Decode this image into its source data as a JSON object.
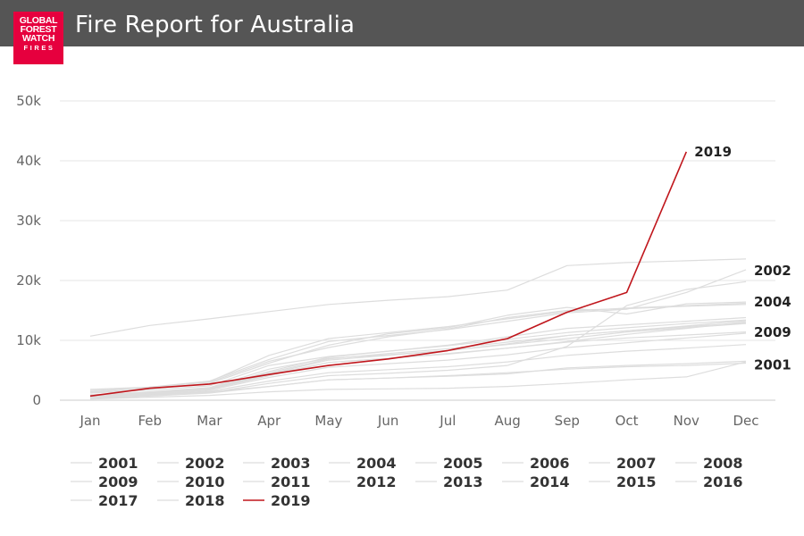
{
  "header": {
    "title": "Fire Report for Australia",
    "logo": {
      "line1": "GLOBAL",
      "line2": "FOREST",
      "line3": "WATCH",
      "line4": "FIRES",
      "color": "#e6003e"
    },
    "background": "#555555"
  },
  "chart_data": {
    "type": "line",
    "title": "",
    "xlabel": "",
    "ylabel": "",
    "categories": [
      "Jan",
      "Feb",
      "Mar",
      "Apr",
      "May",
      "Jun",
      "Jul",
      "Aug",
      "Sep",
      "Oct",
      "Nov",
      "Dec"
    ],
    "ylim": [
      0,
      50000
    ],
    "yticks": [
      0,
      10000,
      20000,
      30000,
      40000,
      50000
    ],
    "ytick_labels": [
      "0",
      "10k",
      "20k",
      "30k",
      "40k",
      "50k"
    ],
    "grid": true,
    "legend_position": "bottom",
    "highlight_color": "#c0161c",
    "muted_color": "#dddddd",
    "series": [
      {
        "name": "2001",
        "values": [
          300,
          900,
          1400,
          2300,
          3400,
          3700,
          4100,
          4600,
          5200,
          5600,
          5800,
          6200
        ],
        "end_label": "2001"
      },
      {
        "name": "2002",
        "values": [
          1800,
          2200,
          3200,
          6800,
          9800,
          10800,
          11800,
          13200,
          14600,
          15200,
          18000,
          21800
        ],
        "end_label": "2002"
      },
      {
        "name": "2003",
        "values": [
          10700,
          12500,
          13600,
          14800,
          16000,
          16700,
          17300,
          18400,
          22500,
          23000,
          23300,
          23600
        ]
      },
      {
        "name": "2004",
        "values": [
          1400,
          2200,
          3000,
          6500,
          8800,
          10600,
          11900,
          13800,
          15000,
          15300,
          15700,
          16000
        ],
        "end_label": "2004"
      },
      {
        "name": "2005",
        "values": [
          900,
          1400,
          2100,
          5200,
          7000,
          7600,
          8300,
          9300,
          10300,
          11400,
          12100,
          12800
        ]
      },
      {
        "name": "2006",
        "values": [
          1200,
          1700,
          2400,
          5800,
          7300,
          8200,
          9100,
          10200,
          11300,
          12100,
          12800,
          13400
        ]
      },
      {
        "name": "2007",
        "values": [
          600,
          1100,
          1800,
          4300,
          6300,
          7000,
          7800,
          8700,
          9800,
          11000,
          12000,
          13100
        ]
      },
      {
        "name": "2008",
        "values": [
          500,
          900,
          1500,
          3200,
          4600,
          5100,
          5600,
          6400,
          7500,
          8200,
          8700,
          9300
        ]
      },
      {
        "name": "2009",
        "values": [
          500,
          1000,
          1700,
          3800,
          5500,
          6100,
          6700,
          7600,
          8800,
          9600,
          10400,
          11200
        ],
        "end_label": "2009"
      },
      {
        "name": "2010",
        "values": [
          300,
          700,
          1200,
          2300,
          3400,
          3700,
          4000,
          4400,
          5400,
          5800,
          6100,
          6500
        ]
      },
      {
        "name": "2011",
        "values": [
          200,
          500,
          800,
          1400,
          1800,
          1900,
          2000,
          2300,
          2800,
          3400,
          3900,
          6400
        ]
      },
      {
        "name": "2012",
        "values": [
          1600,
          2100,
          3100,
          7500,
          10300,
          11300,
          12300,
          13600,
          14800,
          15400,
          15800,
          16200
        ]
      },
      {
        "name": "2013",
        "values": [
          1300,
          1900,
          2800,
          6200,
          9200,
          11100,
          12100,
          14200,
          15500,
          14400,
          16100,
          16400
        ]
      },
      {
        "name": "2014",
        "values": [
          800,
          1300,
          2000,
          4800,
          7200,
          8200,
          9200,
          10600,
          12000,
          12600,
          13200,
          13800
        ]
      },
      {
        "name": "2015",
        "values": [
          700,
          1200,
          1900,
          4400,
          6700,
          7500,
          8300,
          9400,
          10800,
          11600,
          12400,
          13300
        ]
      },
      {
        "name": "2016",
        "values": [
          400,
          800,
          1300,
          2800,
          4100,
          4500,
          5000,
          5800,
          9000,
          15800,
          18500,
          19800
        ]
      },
      {
        "name": "2017",
        "values": [
          600,
          1100,
          1800,
          4100,
          6300,
          7000,
          7700,
          8700,
          9700,
          10400,
          10900,
          11400
        ]
      },
      {
        "name": "2018",
        "values": [
          800,
          1300,
          2000,
          4600,
          6900,
          7800,
          8600,
          9700,
          10800,
          11600,
          12300,
          12900
        ]
      },
      {
        "name": "2019",
        "values": [
          700,
          2000,
          2700,
          4300,
          5800,
          6900,
          8300,
          10300,
          14700,
          18000,
          41500,
          null
        ],
        "end_label": "2019",
        "highlight": true
      }
    ]
  }
}
